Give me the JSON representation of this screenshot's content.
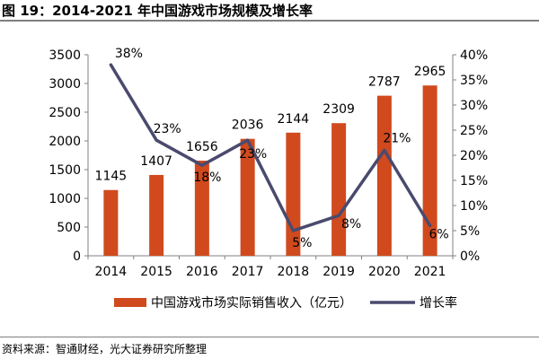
{
  "title": "图 19：2014-2021 年中国游戏市场规模及增长率",
  "source": "资料来源：智通财经，光大证券研究所整理",
  "chart_data": {
    "type": "bar",
    "categories": [
      "2014",
      "2015",
      "2016",
      "2017",
      "2018",
      "2019",
      "2020",
      "2021"
    ],
    "series": [
      {
        "name": "中国游戏市场实际销售收入（亿元）",
        "type": "bar",
        "axis": "left",
        "color": "#d04a1e",
        "values": [
          1145,
          1407,
          1656,
          2036,
          2144,
          2309,
          2787,
          2965
        ],
        "labels": [
          "1145",
          "1407",
          "1656",
          "2036",
          "2144",
          "2309",
          "2787",
          "2965"
        ]
      },
      {
        "name": "增长率",
        "type": "line",
        "axis": "right",
        "color": "#4a4a6e",
        "values": [
          38,
          23,
          18,
          23,
          5,
          8,
          21,
          6
        ],
        "labels": [
          "38%",
          "23%",
          "18%",
          "23%",
          "5%",
          "8%",
          "21%",
          "6%"
        ]
      }
    ],
    "y_left": {
      "ylim": [
        0,
        3500
      ],
      "ticks": [
        0,
        500,
        1000,
        1500,
        2000,
        2500,
        3000,
        3500
      ],
      "tick_labels": [
        "0",
        "500",
        "1000",
        "1500",
        "2000",
        "2500",
        "3000",
        "3500"
      ]
    },
    "y_right": {
      "ylim": [
        0,
        40
      ],
      "ticks": [
        0,
        5,
        10,
        15,
        20,
        25,
        30,
        35,
        40
      ],
      "tick_labels": [
        "0%",
        "5%",
        "10%",
        "15%",
        "20%",
        "25%",
        "30%",
        "35%",
        "40%"
      ]
    },
    "grid": false,
    "legend": "bottom"
  }
}
